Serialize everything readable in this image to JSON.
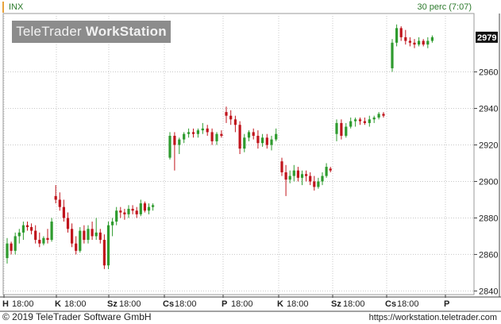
{
  "header": {
    "symbol": "INX",
    "interval": "30 perc (7:07)"
  },
  "logo": {
    "part1": "TeleTrader",
    "part2": "WorkStation"
  },
  "last_price_label": "2979",
  "footer": {
    "copyright": "© 2019 TeleTrader Software GmbH",
    "url": "https://workstation.teletrader.com"
  },
  "colors": {
    "up": "#2e9b2e",
    "down": "#c0141c",
    "grid": "#c8c8c8",
    "symbol": "#2c7a2c"
  },
  "chart_data": {
    "type": "candlestick",
    "ylim": [
      2838,
      2992
    ],
    "y_ticks": [
      2840,
      2860,
      2880,
      2900,
      2920,
      2940,
      2960
    ],
    "x_ticks": [
      {
        "day": "H",
        "time": "18:00"
      },
      {
        "day": "K",
        "time": "18:00"
      },
      {
        "day": "Sz",
        "time": "18:00"
      },
      {
        "day": "Cs",
        "time": "18:00"
      },
      {
        "day": "P",
        "time": "18:00"
      },
      {
        "day": "K",
        "time": "18:00"
      },
      {
        "day": "Sz",
        "time": "18:00"
      },
      {
        "day": "Cs",
        "time": "18:00"
      },
      {
        "day": "P",
        "time": ""
      }
    ],
    "candles": [
      [
        2858,
        2869,
        2855,
        2866
      ],
      [
        2866,
        2867,
        2860,
        2862
      ],
      [
        2862,
        2872,
        2860,
        2870
      ],
      [
        2870,
        2874,
        2866,
        2872
      ],
      [
        2872,
        2878,
        2868,
        2876
      ],
      [
        2876,
        2878,
        2873,
        2875
      ],
      [
        2875,
        2877,
        2871,
        2873
      ],
      [
        2873,
        2876,
        2866,
        2868
      ],
      [
        2868,
        2872,
        2864,
        2866
      ],
      [
        2866,
        2870,
        2865,
        2869
      ],
      [
        2869,
        2874,
        2866,
        2868
      ],
      [
        2868,
        2880,
        2867,
        2878
      ],
      [
        2892,
        2898,
        2888,
        2890
      ],
      [
        2890,
        2894,
        2884,
        2886
      ],
      [
        2886,
        2890,
        2878,
        2880
      ],
      [
        2880,
        2883,
        2872,
        2874
      ],
      [
        2874,
        2877,
        2864,
        2866
      ],
      [
        2866,
        2870,
        2860,
        2862
      ],
      [
        2862,
        2875,
        2861,
        2873
      ],
      [
        2873,
        2876,
        2866,
        2868
      ],
      [
        2868,
        2876,
        2866,
        2874
      ],
      [
        2874,
        2878,
        2868,
        2870
      ],
      [
        2870,
        2880,
        2868,
        2872
      ],
      [
        2872,
        2874,
        2866,
        2868
      ],
      [
        2868,
        2871,
        2852,
        2854
      ],
      [
        2854,
        2878,
        2852,
        2876
      ],
      [
        2876,
        2880,
        2870,
        2878
      ],
      [
        2878,
        2886,
        2876,
        2884
      ],
      [
        2884,
        2886,
        2880,
        2883
      ],
      [
        2883,
        2885,
        2879,
        2882
      ],
      [
        2882,
        2887,
        2880,
        2885
      ],
      [
        2885,
        2887,
        2882,
        2884
      ],
      [
        2884,
        2886,
        2880,
        2882
      ],
      [
        2882,
        2890,
        2881,
        2888
      ],
      [
        2888,
        2889,
        2883,
        2884
      ],
      [
        2884,
        2888,
        2882,
        2886
      ],
      [
        2886,
        2888,
        2884,
        2887
      ],
      [
        2913,
        2927,
        2912,
        2925
      ],
      [
        2925,
        2927,
        2906,
        2920
      ],
      [
        2920,
        2924,
        2915,
        2923
      ],
      [
        2923,
        2927,
        2921,
        2926
      ],
      [
        2926,
        2929,
        2924,
        2927
      ],
      [
        2927,
        2929,
        2924,
        2926
      ],
      [
        2926,
        2929,
        2924,
        2928
      ],
      [
        2928,
        2932,
        2926,
        2929
      ],
      [
        2929,
        2931,
        2925,
        2927
      ],
      [
        2927,
        2929,
        2920,
        2922
      ],
      [
        2922,
        2927,
        2920,
        2926
      ],
      [
        2926,
        2928,
        2924,
        2925
      ],
      [
        2938,
        2941,
        2932,
        2936
      ],
      [
        2936,
        2939,
        2931,
        2934
      ],
      [
        2934,
        2936,
        2927,
        2931
      ],
      [
        2931,
        2933,
        2915,
        2918
      ],
      [
        2918,
        2926,
        2916,
        2924
      ],
      [
        2924,
        2928,
        2922,
        2927
      ],
      [
        2927,
        2929,
        2923,
        2925
      ],
      [
        2925,
        2928,
        2918,
        2921
      ],
      [
        2921,
        2926,
        2919,
        2924
      ],
      [
        2924,
        2926,
        2918,
        2920
      ],
      [
        2920,
        2925,
        2917,
        2923
      ],
      [
        2923,
        2929,
        2922,
        2926
      ],
      [
        2911,
        2913,
        2903,
        2905
      ],
      [
        2905,
        2909,
        2892,
        2901
      ],
      [
        2901,
        2906,
        2899,
        2903
      ],
      [
        2903,
        2909,
        2900,
        2906
      ],
      [
        2906,
        2908,
        2900,
        2902
      ],
      [
        2902,
        2906,
        2898,
        2904
      ],
      [
        2904,
        2906,
        2900,
        2903
      ],
      [
        2903,
        2905,
        2898,
        2900
      ],
      [
        2900,
        2903,
        2895,
        2897
      ],
      [
        2897,
        2902,
        2896,
        2900
      ],
      [
        2900,
        2905,
        2898,
        2903
      ],
      [
        2903,
        2910,
        2902,
        2908
      ],
      [
        2907,
        2908,
        2905,
        2906
      ],
      [
        2926,
        2934,
        2922,
        2932
      ],
      [
        2932,
        2934,
        2923,
        2925
      ],
      [
        2925,
        2932,
        2924,
        2930
      ],
      [
        2930,
        2935,
        2929,
        2933
      ],
      [
        2933,
        2935,
        2930,
        2934
      ],
      [
        2934,
        2935,
        2931,
        2933
      ],
      [
        2933,
        2935,
        2931,
        2932
      ],
      [
        2932,
        2936,
        2930,
        2934
      ],
      [
        2934,
        2936,
        2932,
        2935
      ],
      [
        2935,
        2938,
        2934,
        2937
      ],
      [
        2937,
        2938,
        2935,
        2936
      ],
      [
        2962,
        2978,
        2960,
        2976
      ],
      [
        2976,
        2986,
        2974,
        2984
      ],
      [
        2984,
        2985,
        2977,
        2979
      ],
      [
        2979,
        2983,
        2975,
        2977
      ],
      [
        2977,
        2979,
        2974,
        2976
      ],
      [
        2976,
        2978,
        2973,
        2975
      ],
      [
        2975,
        2979,
        2974,
        2977
      ],
      [
        2977,
        2978,
        2974,
        2975
      ],
      [
        2975,
        2979,
        2973,
        2977
      ],
      [
        2977,
        2980,
        2976,
        2979
      ]
    ]
  }
}
